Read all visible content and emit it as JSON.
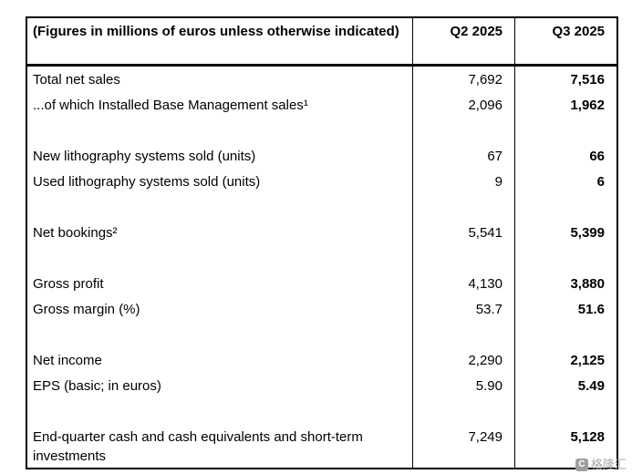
{
  "table": {
    "header": {
      "label": "(Figures in millions of euros unless otherwise indicated)",
      "col_q2": "Q2 2025",
      "col_q3": "Q3 2025"
    },
    "rows": [
      {
        "label": "Total net sales",
        "q2": "7,692",
        "q3": "7,516"
      },
      {
        "label": "...of which Installed Base Management sales¹",
        "q2": "2,096",
        "q3": "1,962"
      },
      {
        "label": "",
        "q2": "",
        "q3": ""
      },
      {
        "label": "New lithography systems sold (units)",
        "q2": "67",
        "q3": "66"
      },
      {
        "label": "Used lithography systems sold (units)",
        "q2": "9",
        "q3": "6"
      },
      {
        "label": "",
        "q2": "",
        "q3": ""
      },
      {
        "label": "Net bookings²",
        "q2": "5,541",
        "q3": "5,399"
      },
      {
        "label": "",
        "q2": "",
        "q3": ""
      },
      {
        "label": "Gross profit",
        "q2": "4,130",
        "q3": "3,880"
      },
      {
        "label": "Gross margin (%)",
        "q2": "53.7",
        "q3": "51.6"
      },
      {
        "label": "",
        "q2": "",
        "q3": ""
      },
      {
        "label": "Net income",
        "q2": "2,290",
        "q3": "2,125"
      },
      {
        "label": "EPS (basic; in euros)",
        "q2": "5.90",
        "q3": "5.49"
      },
      {
        "label": "",
        "q2": "",
        "q3": ""
      },
      {
        "label": "End-quarter cash and cash equivalents and short-term investments",
        "q2": "7,249",
        "q3": "5,128"
      }
    ]
  },
  "watermark": {
    "logo": "C",
    "text": "格隆汇"
  }
}
